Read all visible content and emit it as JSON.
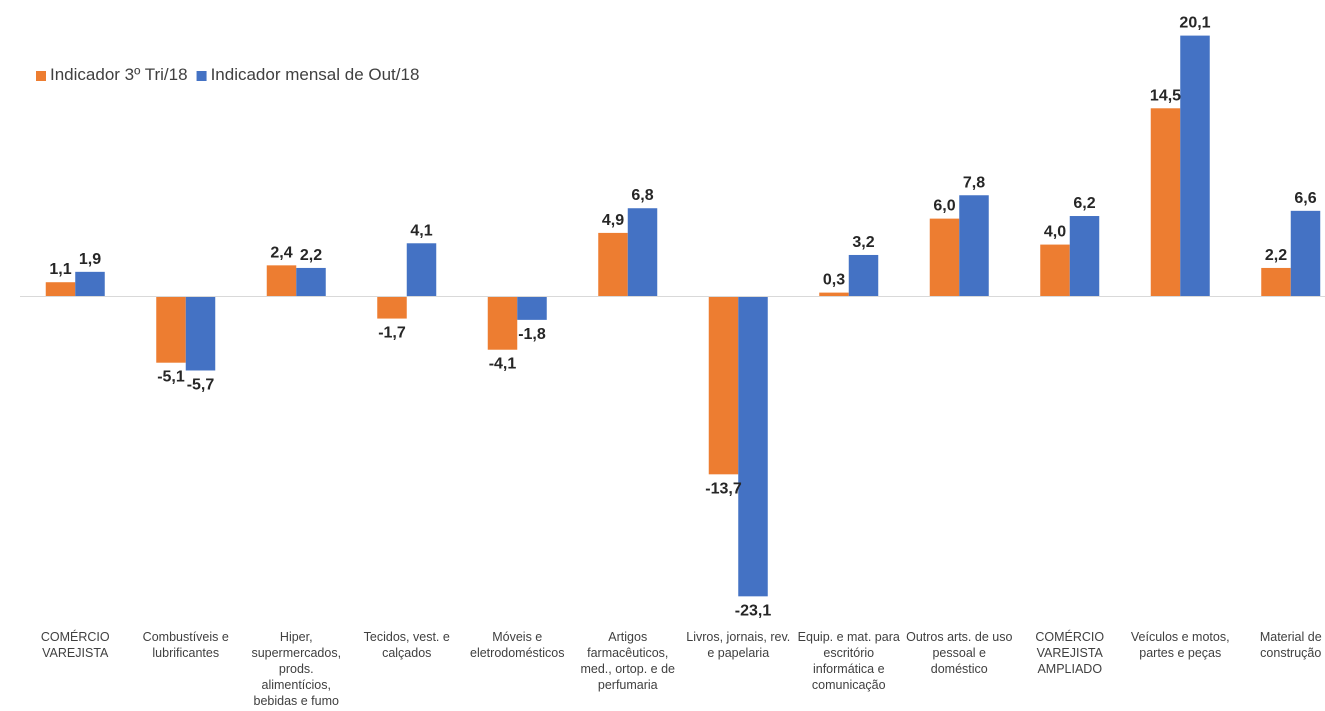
{
  "chart_data": {
    "type": "bar",
    "categories": [
      [
        "COMÉRCIO",
        "VAREJISTA"
      ],
      [
        "Combustíveis e",
        "lubrificantes"
      ],
      [
        "Hiper,",
        "supermercados,",
        "prods.",
        "alimentícios,",
        "bebidas e fumo"
      ],
      [
        "Tecidos, vest. e",
        "calçados"
      ],
      [
        "Móveis e",
        "eletrodomésticos"
      ],
      [
        "Artigos",
        "farmacêuticos,",
        "med., ortop. e de",
        "perfumaria"
      ],
      [
        "Livros, jornais, rev.",
        "e papelaria"
      ],
      [
        "Equip. e mat. para",
        "escritório",
        "informática e",
        "comunicação"
      ],
      [
        "Outros arts. de uso",
        "pessoal e",
        "doméstico"
      ],
      [
        "COMÉRCIO",
        "VAREJISTA",
        "AMPLIADO"
      ],
      [
        "Veículos e motos,",
        "partes e peças"
      ],
      [
        "Material de",
        "construção"
      ]
    ],
    "series": [
      {
        "name": "Indicador 3º Tri/18",
        "color": "#ED7D31",
        "values": [
          1.1,
          -5.1,
          2.4,
          -1.7,
          -4.1,
          4.9,
          -13.7,
          0.3,
          6.0,
          4.0,
          14.5,
          2.2
        ],
        "labels": [
          "1,1",
          "-5,1",
          "2,4",
          "-1,7",
          "-4,1",
          "4,9",
          "-13,7",
          "0,3",
          "6,0",
          "4,0",
          "14,5",
          "2,2"
        ]
      },
      {
        "name": "Indicador mensal de Out/18",
        "color": "#4472C4",
        "values": [
          1.9,
          -5.7,
          2.2,
          4.1,
          -1.8,
          6.8,
          -23.1,
          3.2,
          7.8,
          6.2,
          20.1,
          6.6
        ],
        "labels": [
          "1,9",
          "-5,7",
          "2,2",
          "4,1",
          "-1,8",
          "6,8",
          "-23,1",
          "3,2",
          "7,8",
          "6,2",
          "20,1",
          "6,6"
        ]
      }
    ],
    "ylim": [
      -23.1,
      20.1
    ],
    "grid": false,
    "legend_position": "top-left"
  }
}
